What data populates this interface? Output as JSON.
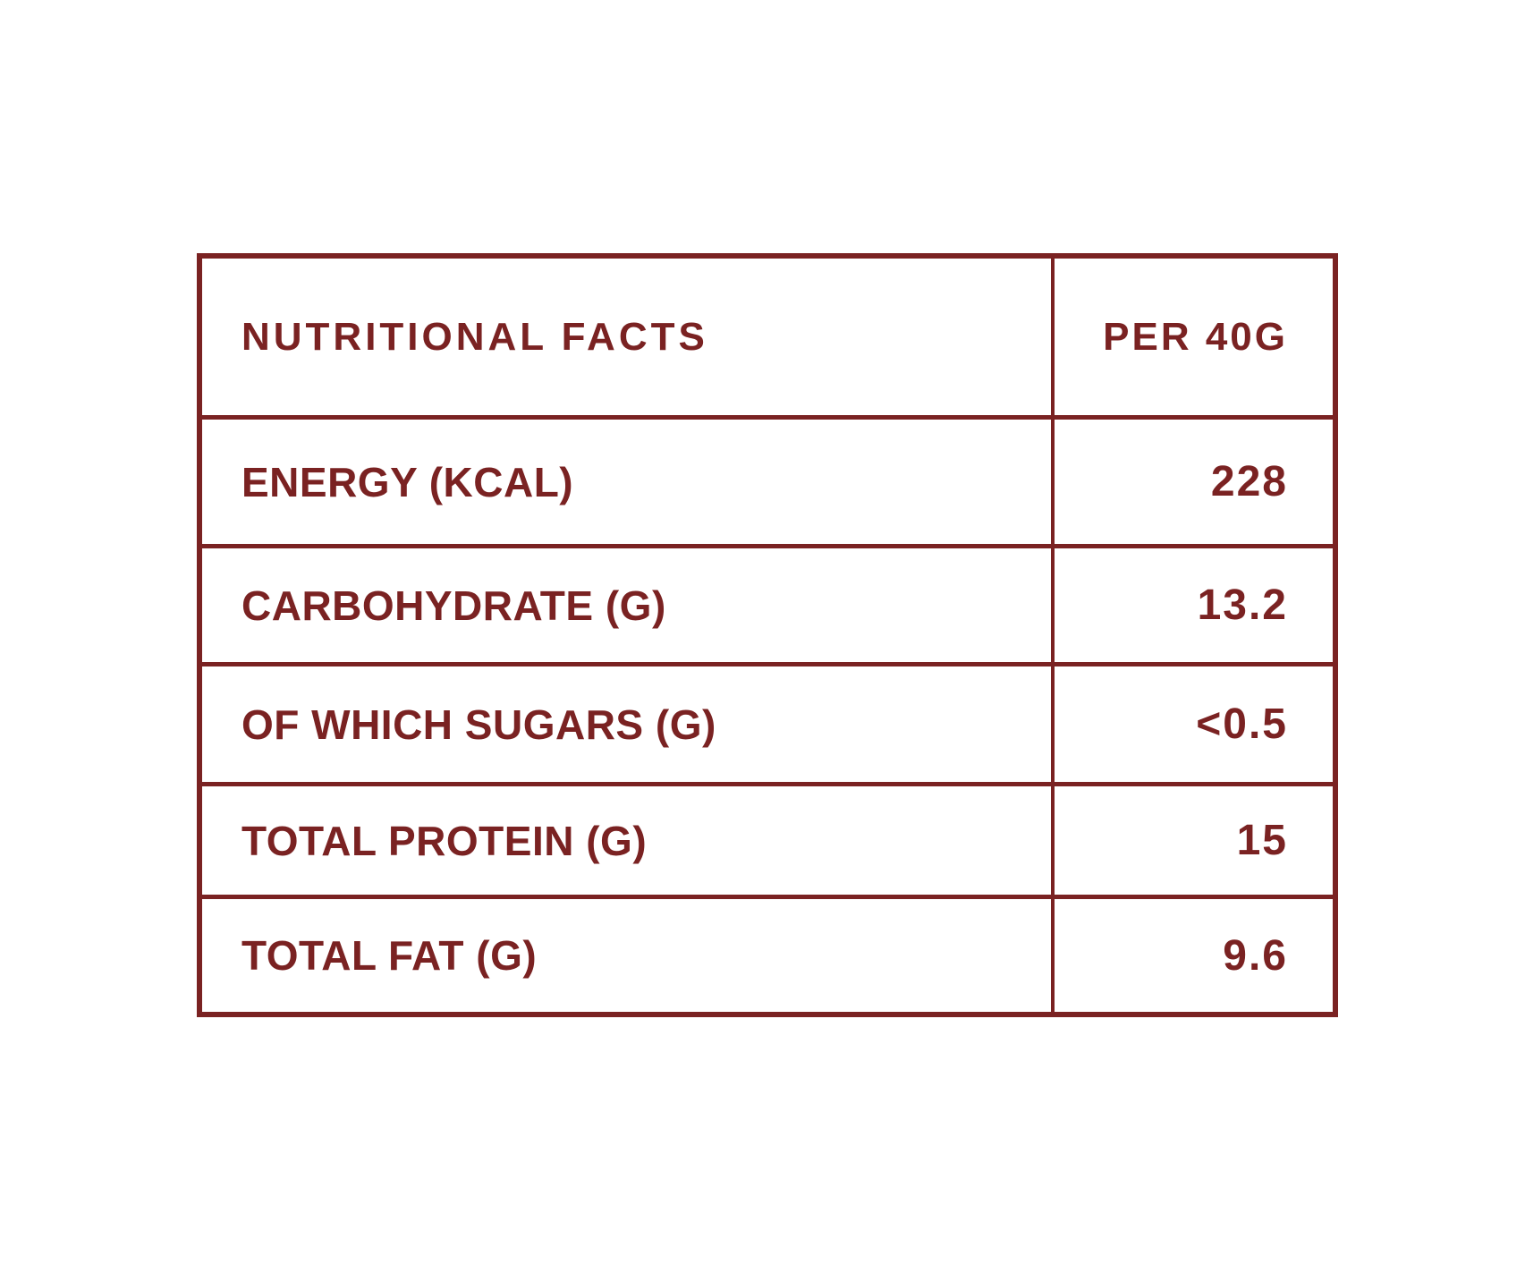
{
  "table": {
    "header": {
      "label": "NUTRITIONAL FACTS",
      "value": "PER 40G"
    },
    "rows": [
      {
        "label": "ENERGY (KCAL)",
        "value": "228"
      },
      {
        "label": "CARBOHYDRATE (G)",
        "value": "13.2"
      },
      {
        "label": "OF WHICH SUGARS (G)",
        "value": "<0.5"
      },
      {
        "label": "TOTAL PROTEIN (G)",
        "value": "15"
      },
      {
        "label": "TOTAL FAT (G)",
        "value": "9.6"
      }
    ]
  },
  "colors": {
    "accent": "#7a2222",
    "background": "#ffffff"
  }
}
